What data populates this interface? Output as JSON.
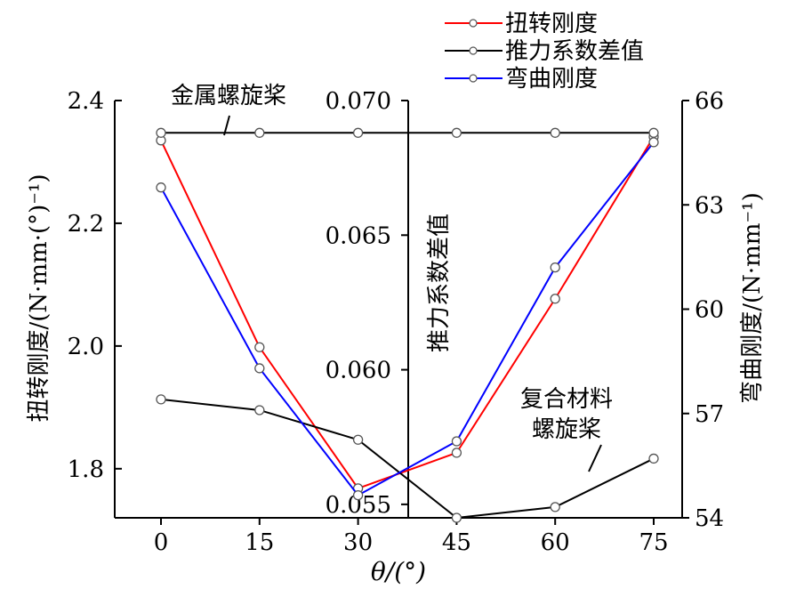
{
  "chart_data": {
    "type": "line",
    "xlabel": "θ/(°)",
    "x": [
      0,
      15,
      30,
      45,
      60,
      75
    ],
    "x_ticks": [
      "0",
      "15",
      "30",
      "45",
      "60",
      "75"
    ],
    "left_axis": {
      "label": "扭转刚度/(N·mm·(°)⁻¹)",
      "ylim": [
        1.72,
        2.4
      ],
      "ticks": [
        "1.8",
        "2.0",
        "2.2",
        "2.4"
      ]
    },
    "middle_axis": {
      "label": "推力系数差值",
      "ylim": [
        0.0545,
        0.07
      ],
      "ticks": [
        "0.055",
        "0.060",
        "0.065",
        "0.070"
      ]
    },
    "right_axis": {
      "label": "弯曲刚度/(N·mm⁻¹)",
      "ylim": [
        54,
        66
      ],
      "ticks": [
        "54",
        "57",
        "60",
        "63",
        "66"
      ]
    },
    "series": [
      {
        "name": "扭转刚度",
        "axis": "left",
        "color": "#ff0000",
        "values": [
          2.335,
          1.998,
          1.768,
          1.826,
          2.077,
          2.341
        ]
      },
      {
        "name": "推力系数差值",
        "axis": "middle",
        "color": "#000000",
        "values": [
          0.0589,
          0.0585,
          0.0574,
          0.0545,
          0.0549,
          0.0567
        ]
      },
      {
        "name": "推力系数差值",
        "axis": "middle",
        "color": "#000000",
        "legend": false,
        "values": [
          0.0688,
          0.0688,
          0.0688,
          0.0688,
          0.0688,
          0.0688
        ]
      },
      {
        "name": "弯曲刚度",
        "axis": "right",
        "color": "#0000ff",
        "values": [
          63.5,
          58.3,
          54.65,
          56.2,
          61.2,
          64.8
        ]
      }
    ],
    "legend_position": "top-right",
    "annotations": {
      "metal": "金属螺旋桨",
      "composite_1": "复合材料",
      "composite_2": "螺旋桨"
    },
    "grid": false
  }
}
